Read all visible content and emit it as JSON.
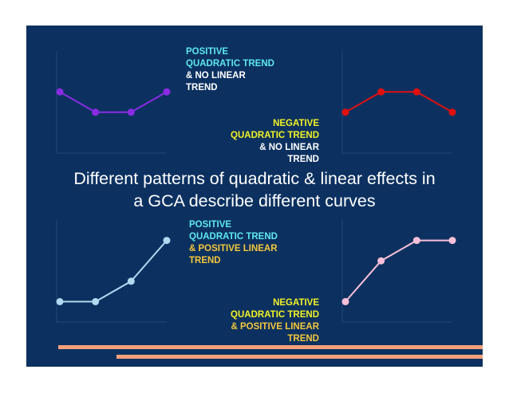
{
  "colors": {
    "background": "#0c3160",
    "cyan": "#5ee8f0",
    "yellow": "#f2f224",
    "white": "#ffffff",
    "orange": "#f5c73a",
    "purple": "#8a2be2",
    "red": "#e01010",
    "lightblue": "#b0d8f0",
    "pink": "#f8c0d8",
    "accent_bar": "#f4a07a"
  },
  "title": {
    "line1": "Different patterns of quadratic & linear effects in",
    "line2": "a GCA describe different curves"
  },
  "labels": {
    "pos_quad_no_lin": [
      "POSITIVE",
      "QUADRATIC TREND",
      "& NO LINEAR",
      "TREND"
    ],
    "neg_quad_no_lin": [
      "NEGATIVE",
      "QUADRATIC TREND",
      "& NO LINEAR",
      "TREND"
    ],
    "pos_quad_pos_lin": [
      "POSITIVE",
      "QUADRATIC TREND",
      "& POSITIVE LINEAR",
      "TREND"
    ],
    "neg_quad_pos_lin": [
      "NEGATIVE",
      "QUADRATIC TREND",
      "& POSITIVE LINEAR",
      "TREND"
    ]
  },
  "chart_data": [
    {
      "type": "line",
      "x": [
        1,
        2,
        3,
        4
      ],
      "values": [
        3,
        2,
        2,
        3
      ],
      "ylim": [
        0,
        5
      ],
      "color": "#8a2be2"
    },
    {
      "type": "line",
      "x": [
        1,
        2,
        3,
        4
      ],
      "values": [
        2,
        3,
        3,
        2
      ],
      "ylim": [
        0,
        5
      ],
      "color": "#e01010"
    },
    {
      "type": "line",
      "x": [
        1,
        2,
        3,
        4
      ],
      "values": [
        1,
        1,
        2,
        4
      ],
      "ylim": [
        0,
        5
      ],
      "color": "#b0d8f0"
    },
    {
      "type": "line",
      "x": [
        1,
        2,
        3,
        4
      ],
      "values": [
        1,
        3,
        4,
        4
      ],
      "ylim": [
        0,
        5
      ],
      "color": "#f8c0d8"
    }
  ]
}
